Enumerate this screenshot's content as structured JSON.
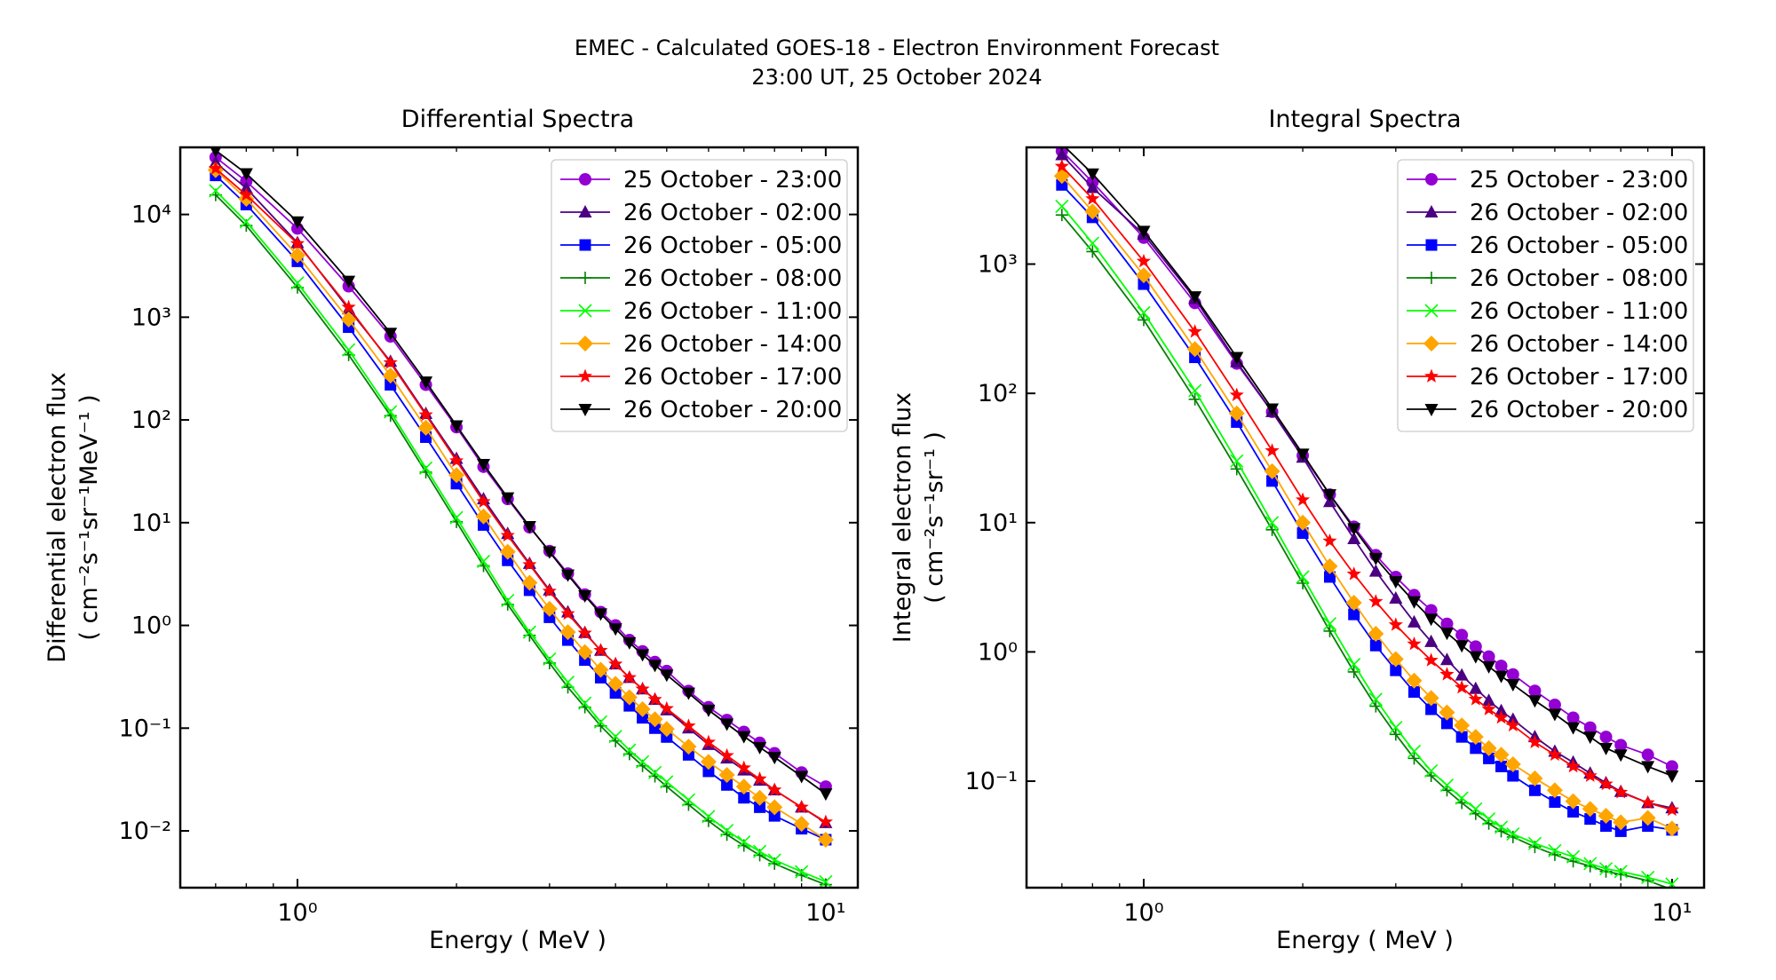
{
  "figure": {
    "title_line1": "EMEC - Calculated GOES-18 - Electron Environment Forecast",
    "title_line2": "23:00 UT, 25 October 2024"
  },
  "energies_mev": [
    0.7,
    0.8,
    1.0,
    1.25,
    1.5,
    1.75,
    2.0,
    2.25,
    2.5,
    2.75,
    3.0,
    3.25,
    3.5,
    3.75,
    4.0,
    4.25,
    4.5,
    4.75,
    5.0,
    5.5,
    6.0,
    6.5,
    7.0,
    7.5,
    8.0,
    9.0,
    10.0
  ],
  "legend_entries": [
    {
      "label": "25 October - 23:00",
      "color": "#9400D3",
      "marker": "circle"
    },
    {
      "label": "26 October - 02:00",
      "color": "#4B0082",
      "marker": "triangle-up"
    },
    {
      "label": "26 October - 05:00",
      "color": "#0000FF",
      "marker": "square"
    },
    {
      "label": "26 October - 08:00",
      "color": "#008000",
      "marker": "plus"
    },
    {
      "label": "26 October - 11:00",
      "color": "#00FF00",
      "marker": "x"
    },
    {
      "label": "26 October - 14:00",
      "color": "#FFA500",
      "marker": "diamond"
    },
    {
      "label": "26 October - 17:00",
      "color": "#FF0000",
      "marker": "star"
    },
    {
      "label": "26 October - 20:00",
      "color": "#000000",
      "marker": "triangle-down"
    }
  ],
  "chart_data": [
    {
      "type": "line",
      "id": "differential",
      "title": "Differential Spectra",
      "xlabel": "Energy ( MeV )",
      "ylabel_line1": "Differential electron flux",
      "ylabel_line2": "( cm⁻²s⁻¹sr⁻¹MeV⁻¹ )",
      "x_scale": "log",
      "y_scale": "log",
      "xlim": [
        0.6,
        11.5
      ],
      "ylim": [
        0.0028,
        45000
      ],
      "x_ticks": [
        {
          "value": 1,
          "label": "10⁰"
        },
        {
          "value": 10,
          "label": "10¹"
        }
      ],
      "y_ticks": [
        {
          "value": 10000,
          "label": "10⁴"
        },
        {
          "value": 1000,
          "label": "10³"
        },
        {
          "value": 100,
          "label": "10²"
        },
        {
          "value": 10,
          "label": "10¹"
        },
        {
          "value": 1,
          "label": "10⁰"
        },
        {
          "value": 0.1,
          "label": "10⁻¹"
        },
        {
          "value": 0.01,
          "label": "10⁻²"
        }
      ],
      "legend_position": "upper-right",
      "grid": false,
      "series": [
        {
          "name": "25 October - 23:00",
          "values": [
            36000,
            21000,
            7300,
            2000,
            650,
            220,
            85,
            35,
            17,
            9.0,
            5.3,
            3.2,
            2.0,
            1.35,
            1.0,
            0.72,
            0.56,
            0.44,
            0.36,
            0.23,
            0.16,
            0.12,
            0.092,
            0.072,
            0.057,
            0.037,
            0.027
          ]
        },
        {
          "name": "26 October - 02:00",
          "values": [
            32000,
            18000,
            5300,
            1200,
            370,
            115,
            42,
            17,
            7.8,
            4.0,
            2.2,
            1.35,
            0.85,
            0.57,
            0.42,
            0.31,
            0.24,
            0.19,
            0.15,
            0.1,
            0.069,
            0.051,
            0.039,
            0.031,
            0.025,
            0.017,
            0.012
          ]
        },
        {
          "name": "26 October - 05:00",
          "values": [
            24000,
            12500,
            3500,
            800,
            220,
            68,
            24,
            9.5,
            4.3,
            2.2,
            1.2,
            0.72,
            0.46,
            0.31,
            0.22,
            0.165,
            0.126,
            0.1,
            0.082,
            0.055,
            0.038,
            0.028,
            0.021,
            0.017,
            0.014,
            0.0105,
            0.0082
          ]
        },
        {
          "name": "26 October - 08:00",
          "values": [
            15500,
            7800,
            1950,
            430,
            110,
            31,
            10.2,
            3.8,
            1.6,
            0.8,
            0.43,
            0.25,
            0.16,
            0.105,
            0.075,
            0.056,
            0.043,
            0.034,
            0.027,
            0.018,
            0.0125,
            0.0092,
            0.0072,
            0.0058,
            0.0048,
            0.0037,
            0.003
          ]
        },
        {
          "name": "26 October - 11:00",
          "values": [
            17000,
            8500,
            2150,
            480,
            120,
            34,
            11.2,
            4.2,
            1.75,
            0.86,
            0.47,
            0.28,
            0.175,
            0.115,
            0.083,
            0.061,
            0.047,
            0.037,
            0.03,
            0.02,
            0.0138,
            0.0101,
            0.0078,
            0.0063,
            0.0052,
            0.004,
            0.0032
          ]
        },
        {
          "name": "26 October - 14:00",
          "values": [
            27000,
            14200,
            4000,
            950,
            270,
            84,
            29,
            11.5,
            5.2,
            2.6,
            1.45,
            0.86,
            0.55,
            0.37,
            0.27,
            0.2,
            0.153,
            0.122,
            0.098,
            0.066,
            0.047,
            0.035,
            0.027,
            0.021,
            0.017,
            0.0117,
            0.0082
          ]
        },
        {
          "name": "26 October - 17:00",
          "values": [
            28000,
            15500,
            5200,
            1250,
            360,
            112,
            40,
            16,
            7.5,
            3.9,
            2.15,
            1.3,
            0.84,
            0.57,
            0.42,
            0.31,
            0.24,
            0.19,
            0.155,
            0.105,
            0.073,
            0.054,
            0.041,
            0.032,
            0.025,
            0.017,
            0.0122
          ]
        },
        {
          "name": "26 October - 20:00",
          "values": [
            42000,
            25000,
            8500,
            2250,
            700,
            235,
            88,
            37,
            17.5,
            9.2,
            5.2,
            3.1,
            1.95,
            1.3,
            0.93,
            0.68,
            0.52,
            0.41,
            0.33,
            0.22,
            0.15,
            0.11,
            0.083,
            0.065,
            0.052,
            0.034,
            0.023
          ]
        }
      ]
    },
    {
      "type": "line",
      "id": "integral",
      "title": "Integral Spectra",
      "xlabel": "Energy ( MeV )",
      "ylabel_line1": "Integral electron flux",
      "ylabel_line2": "( cm⁻²s⁻¹sr⁻¹ )",
      "x_scale": "log",
      "y_scale": "log",
      "xlim": [
        0.6,
        11.5
      ],
      "ylim": [
        0.015,
        8000
      ],
      "x_ticks": [
        {
          "value": 1,
          "label": "10⁰"
        },
        {
          "value": 10,
          "label": "10¹"
        }
      ],
      "y_ticks": [
        {
          "value": 1000,
          "label": "10³"
        },
        {
          "value": 100,
          "label": "10²"
        },
        {
          "value": 10,
          "label": "10¹"
        },
        {
          "value": 1,
          "label": "10⁰"
        },
        {
          "value": 0.1,
          "label": "10⁻¹"
        }
      ],
      "legend_position": "upper-right",
      "grid": false,
      "series": [
        {
          "name": "25 October - 23:00",
          "values": [
            7500,
            4300,
            1600,
            500,
            170,
            72,
            33,
            16.5,
            9.3,
            5.6,
            3.8,
            2.75,
            2.1,
            1.65,
            1.35,
            1.1,
            0.92,
            0.78,
            0.67,
            0.5,
            0.39,
            0.31,
            0.26,
            0.22,
            0.19,
            0.16,
            0.13
          ]
        },
        {
          "name": "26 October - 02:00",
          "values": [
            7000,
            3900,
            1700,
            540,
            175,
            72,
            32,
            14.5,
            7.5,
            4.2,
            2.6,
            1.7,
            1.2,
            0.87,
            0.66,
            0.52,
            0.42,
            0.35,
            0.3,
            0.22,
            0.17,
            0.14,
            0.115,
            0.097,
            0.083,
            0.068,
            0.062
          ]
        },
        {
          "name": "26 October - 05:00",
          "values": [
            4100,
            2300,
            700,
            190,
            60,
            21,
            8.3,
            3.8,
            1.95,
            1.12,
            0.72,
            0.49,
            0.36,
            0.28,
            0.22,
            0.18,
            0.15,
            0.13,
            0.11,
            0.085,
            0.069,
            0.058,
            0.051,
            0.045,
            0.041,
            0.045,
            0.042
          ]
        },
        {
          "name": "26 October - 08:00",
          "values": [
            2400,
            1250,
            370,
            90,
            26,
            8.8,
            3.4,
            1.45,
            0.7,
            0.38,
            0.23,
            0.15,
            0.11,
            0.085,
            0.068,
            0.056,
            0.047,
            0.041,
            0.037,
            0.031,
            0.027,
            0.024,
            0.022,
            0.02,
            0.019,
            0.017,
            0.0145
          ]
        },
        {
          "name": "26 October - 11:00",
          "values": [
            2800,
            1450,
            420,
            105,
            30,
            10,
            3.8,
            1.65,
            0.8,
            0.43,
            0.26,
            0.17,
            0.12,
            0.093,
            0.074,
            0.061,
            0.051,
            0.044,
            0.039,
            0.033,
            0.029,
            0.026,
            0.023,
            0.021,
            0.02,
            0.018,
            0.016
          ]
        },
        {
          "name": "26 October - 14:00",
          "values": [
            4800,
            2550,
            820,
            220,
            70,
            25,
            10,
            4.6,
            2.4,
            1.38,
            0.88,
            0.6,
            0.44,
            0.34,
            0.27,
            0.22,
            0.18,
            0.16,
            0.135,
            0.105,
            0.085,
            0.07,
            0.061,
            0.054,
            0.048,
            0.052,
            0.043
          ]
        },
        {
          "name": "26 October - 17:00",
          "values": [
            5700,
            3200,
            1050,
            300,
            97,
            36,
            15,
            7.2,
            4.0,
            2.45,
            1.62,
            1.15,
            0.86,
            0.67,
            0.53,
            0.43,
            0.36,
            0.31,
            0.27,
            0.2,
            0.16,
            0.13,
            0.11,
            0.095,
            0.082,
            0.068,
            0.06
          ]
        },
        {
          "name": "26 October - 20:00",
          "values": [
            8500,
            5000,
            1800,
            560,
            190,
            76,
            34,
            16.5,
            9.0,
            5.3,
            3.5,
            2.45,
            1.8,
            1.4,
            1.12,
            0.92,
            0.77,
            0.65,
            0.56,
            0.42,
            0.33,
            0.26,
            0.22,
            0.18,
            0.16,
            0.13,
            0.11
          ]
        }
      ]
    }
  ]
}
